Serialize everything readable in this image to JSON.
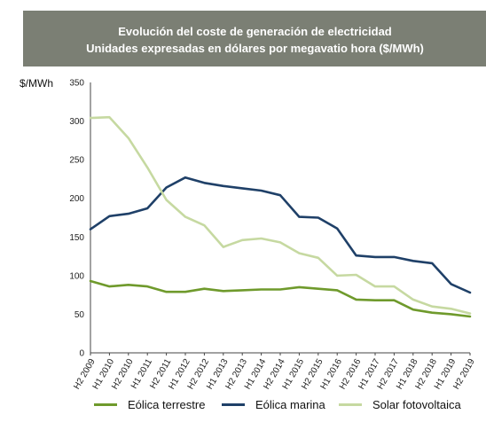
{
  "title": "Evolución del coste de generación de electricidad",
  "subtitle": "Unidades expresadas en dólares por megavatio hora ($/MWh)",
  "chart_data": {
    "type": "line",
    "title": "Evolución del coste de generación de electricidad",
    "subtitle": "Unidades expresadas en dólares por megavatio hora ($/MWh)",
    "ylabel": "$/MWh",
    "xlabel": "",
    "ylim": [
      0,
      350
    ],
    "yticks": [
      0,
      50,
      100,
      150,
      200,
      250,
      300,
      350
    ],
    "grid": false,
    "legend_position": "bottom",
    "categories": [
      "H2 2009",
      "H1 2010",
      "H2 2010",
      "H1 2011",
      "H2 2011",
      "H1 2012",
      "H2 2012",
      "H1 2013",
      "H2 2013",
      "H1 2014",
      "H2 2014",
      "H1 2015",
      "H2 2015",
      "H1 2016",
      "H2 2016",
      "H1 2017",
      "H2 2017",
      "H1 2018",
      "H2 2018",
      "H1 2019",
      "H2 2019"
    ],
    "series": [
      {
        "name": "Eólica terrestre",
        "color": "#6f9a2c",
        "values": [
          93,
          86,
          88,
          86,
          79,
          79,
          83,
          80,
          81,
          82,
          82,
          85,
          83,
          81,
          69,
          68,
          68,
          56,
          52,
          50,
          47
        ]
      },
      {
        "name": "Eólica marina",
        "color": "#1f4068",
        "values": [
          160,
          177,
          180,
          187,
          214,
          227,
          220,
          216,
          213,
          210,
          204,
          176,
          175,
          161,
          126,
          124,
          124,
          119,
          116,
          89,
          78
        ]
      },
      {
        "name": "Solar fotovoltaica",
        "color": "#c6d9a1",
        "values": [
          304,
          305,
          278,
          240,
          198,
          176,
          165,
          137,
          146,
          148,
          143,
          129,
          123,
          100,
          101,
          86,
          86,
          69,
          60,
          57,
          51
        ]
      }
    ]
  }
}
